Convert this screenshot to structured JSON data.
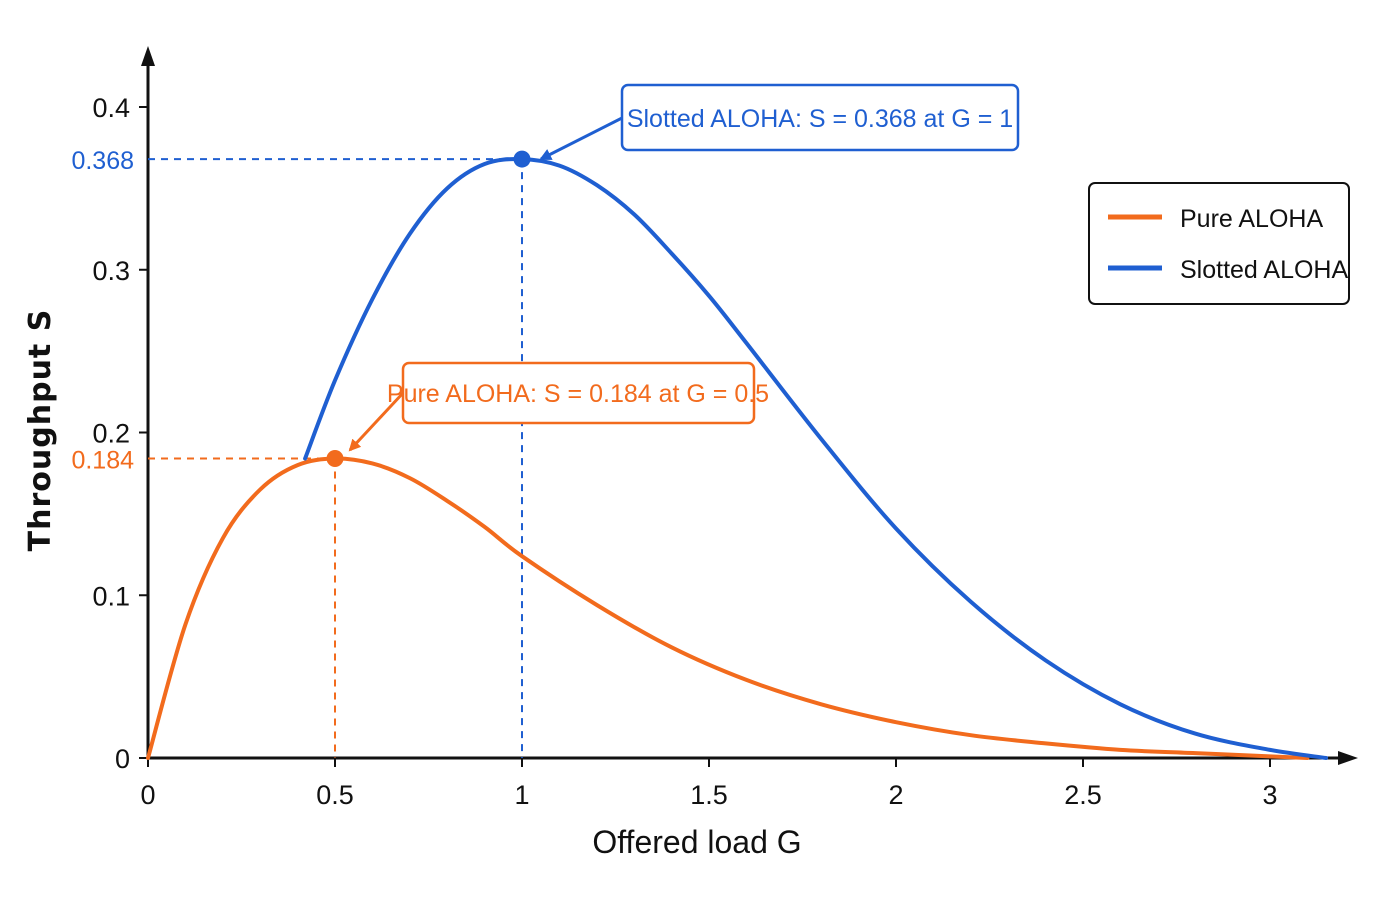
{
  "colors": {
    "pure": "#f26b1d",
    "slotted": "#1f5fd1",
    "axis": "#111111"
  },
  "chart_data": {
    "type": "line",
    "title": "",
    "xlabel": "Offered load G",
    "ylabel": "Throughput S",
    "xlim": [
      0,
      3.2
    ],
    "ylim": [
      0,
      0.4
    ],
    "xticks": [
      0,
      0.5,
      1,
      1.5,
      2,
      2.5,
      3
    ],
    "xtick_labels": [
      "0",
      "0.5",
      "1",
      "1.5",
      "2",
      "2.5",
      "3"
    ],
    "yticks": [
      0,
      0.1,
      0.2,
      0.3,
      0.4
    ],
    "ytick_labels": [
      "0",
      "0.1",
      "0.2",
      "0.3",
      "0.4"
    ],
    "grid": false,
    "legend": {
      "placement": "top-right",
      "entries": [
        "Pure ALOHA",
        "Slotted ALOHA"
      ]
    },
    "series": [
      {
        "name": "Pure ALOHA",
        "color": "#f26b1d",
        "x": [
          0,
          0.1,
          0.2,
          0.3,
          0.4,
          0.5,
          0.6,
          0.7,
          0.8,
          0.9,
          1.0,
          1.2,
          1.4,
          1.6,
          1.8,
          2.0,
          2.2,
          2.4,
          2.6,
          2.8,
          3.0,
          3.1
        ],
        "values": [
          0,
          0.082,
          0.135,
          0.165,
          0.18,
          0.184,
          0.181,
          0.172,
          0.158,
          0.142,
          0.124,
          0.094,
          0.068,
          0.048,
          0.033,
          0.022,
          0.014,
          0.009,
          0.005,
          0.003,
          0.001,
          0.0
        ]
      },
      {
        "name": "Slotted ALOHA",
        "color": "#1f5fd1",
        "x": [
          0.42,
          0.5,
          0.6,
          0.7,
          0.8,
          0.9,
          1.0,
          1.1,
          1.2,
          1.3,
          1.4,
          1.5,
          1.6,
          1.8,
          2.0,
          2.2,
          2.4,
          2.6,
          2.8,
          3.0,
          3.15
        ],
        "values": [
          0.184,
          0.232,
          0.282,
          0.322,
          0.35,
          0.365,
          0.368,
          0.364,
          0.352,
          0.334,
          0.31,
          0.284,
          0.255,
          0.196,
          0.141,
          0.096,
          0.06,
          0.033,
          0.015,
          0.005,
          0.0
        ]
      }
    ],
    "peaks": [
      {
        "series": "Slotted ALOHA",
        "g": 1,
        "s": 0.368,
        "axis_label": "0.368",
        "callout": "Slotted ALOHA: S = 0.368 at G = 1",
        "color": "#1f5fd1"
      },
      {
        "series": "Pure ALOHA",
        "g": 0.5,
        "s": 0.184,
        "axis_label": "0.184",
        "callout": "Pure ALOHA: S = 0.184 at G = 0.5",
        "color": "#f26b1d"
      }
    ]
  }
}
